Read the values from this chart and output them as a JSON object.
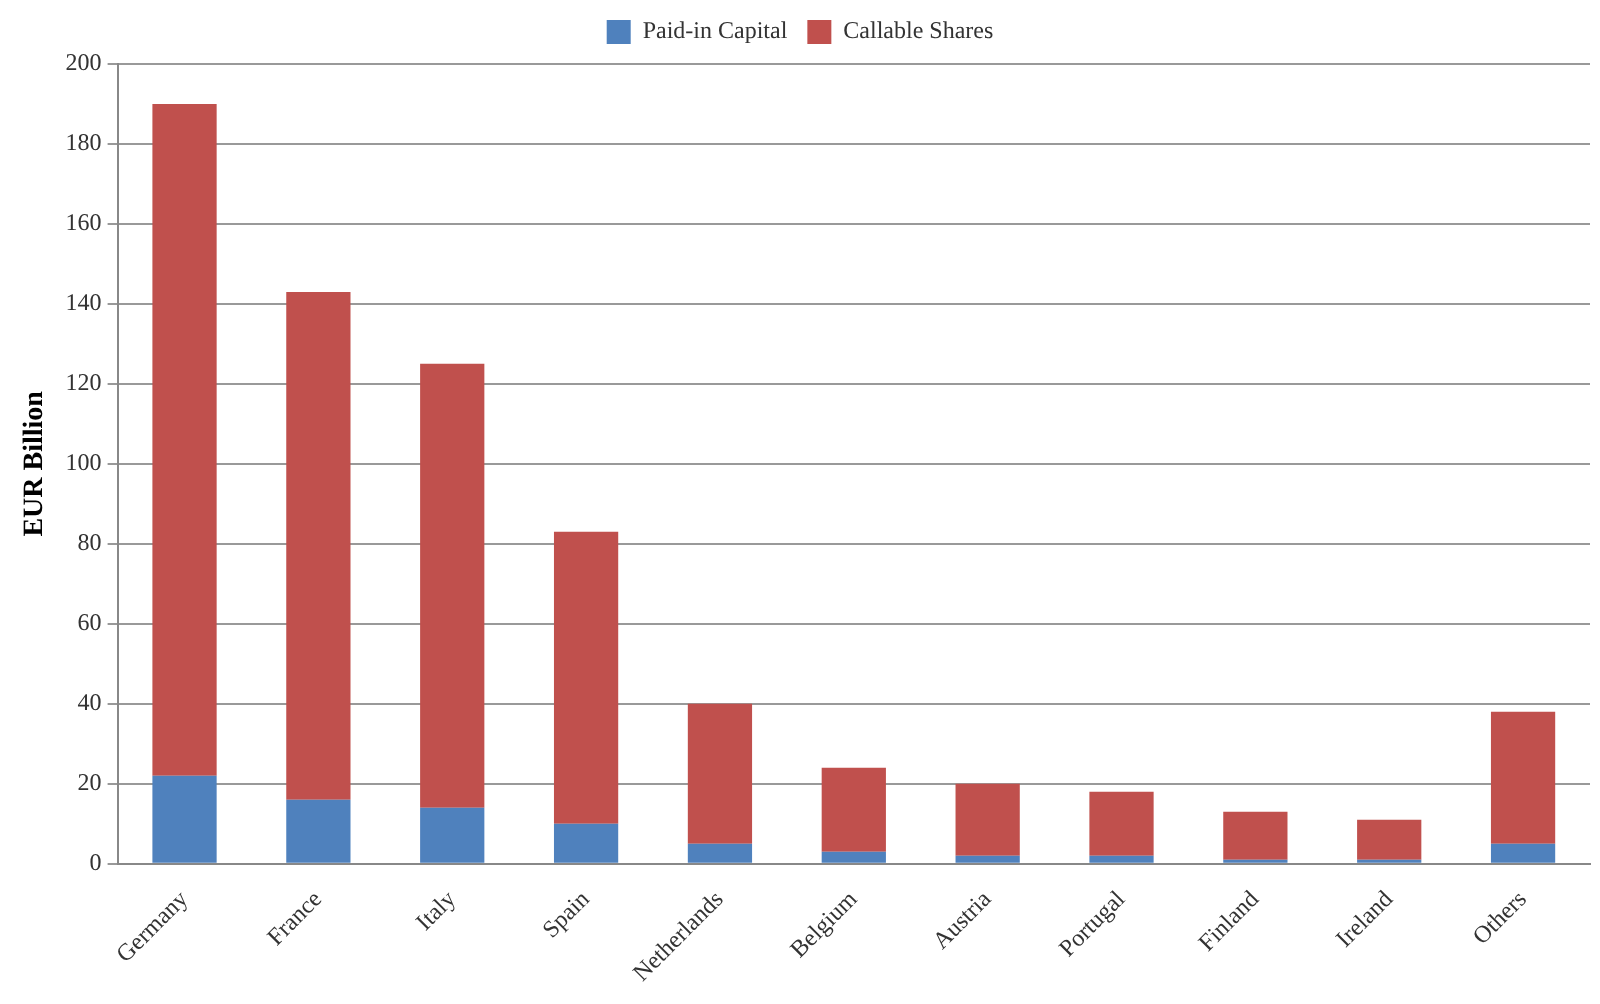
{
  "chart_data": {
    "type": "bar",
    "stacked": true,
    "ylabel": "EUR Billion",
    "categories": [
      "Germany",
      "France",
      "Italy",
      "Spain",
      "Netherlands",
      "Belgium",
      "Austria",
      "Portugal",
      "Finland",
      "Ireland",
      "Others"
    ],
    "series": [
      {
        "name": "Paid-in Capital",
        "color": "#4f81bd",
        "values": [
          22,
          16,
          14,
          10,
          5,
          3,
          2,
          2,
          1,
          1,
          5
        ]
      },
      {
        "name": "Callable Shares",
        "color": "#c0504d",
        "values": [
          168,
          127,
          111,
          73,
          35,
          21,
          18,
          16,
          12,
          10,
          33
        ]
      }
    ],
    "ylim": [
      0,
      200
    ],
    "yticks": [
      0,
      20,
      40,
      60,
      80,
      100,
      120,
      140,
      160,
      180,
      200
    ],
    "grid": "y",
    "legend": "top"
  }
}
